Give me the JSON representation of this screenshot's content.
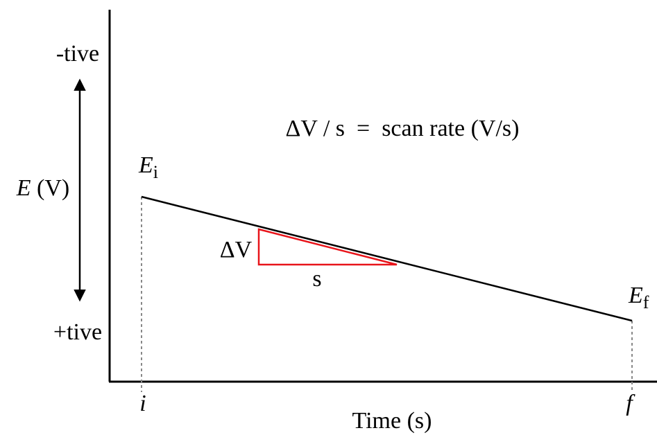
{
  "axes": {
    "y_label_var": "E",
    "y_label_unit": " (V)",
    "y_top_label": "-tive",
    "y_bottom_label": "+tive",
    "x_label": "Time (s)",
    "x_start_label": "i",
    "x_end_label": "f"
  },
  "potential": {
    "initial_var": "E",
    "initial_sub": "i",
    "final_var": "E",
    "final_sub": "f"
  },
  "slope_triangle": {
    "vertical_label": "ΔV",
    "horizontal_label": "s",
    "color": "#e8141a"
  },
  "equation": "ΔV / s  =  scan rate (V/s)"
}
